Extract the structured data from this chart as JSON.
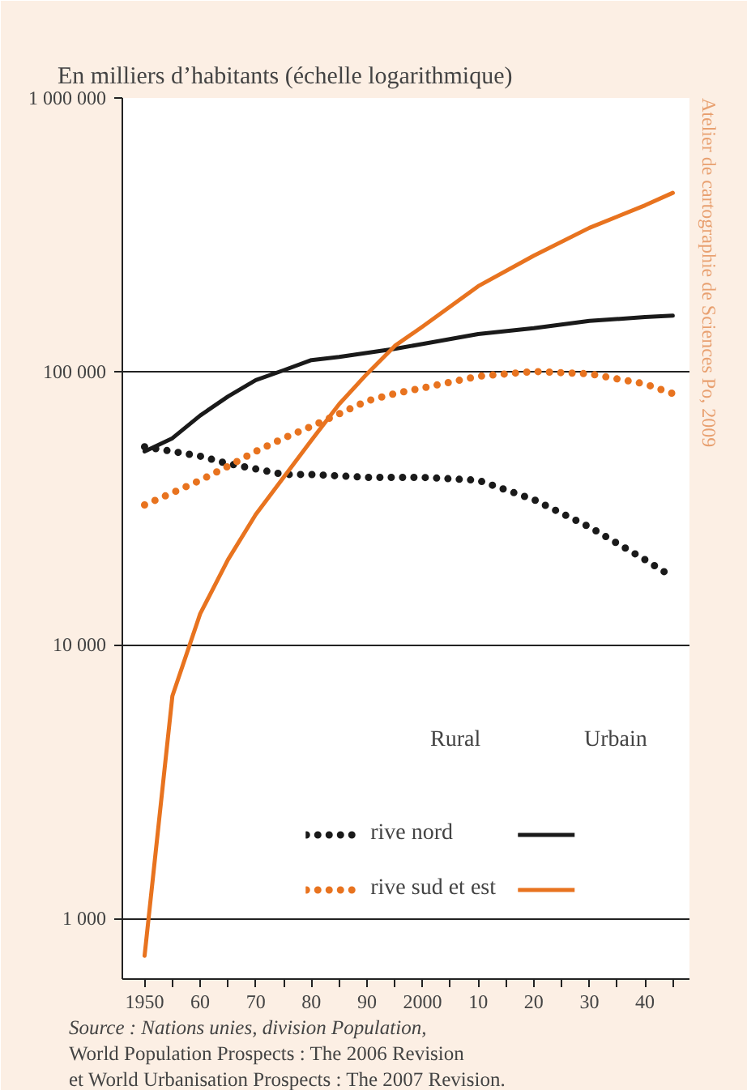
{
  "chart_data": {
    "type": "line",
    "title": "En milliers d’habitants (échelle logarithmique)",
    "x": [
      1950,
      1955,
      1960,
      1965,
      1970,
      1975,
      1980,
      1985,
      1990,
      1995,
      2000,
      2010,
      2020,
      2030,
      2040,
      2045
    ],
    "series": [
      {
        "name": "rive nord",
        "color": "#1a1a1a",
        "line_style": "dotted",
        "values": [
          53000,
          51000,
          49000,
          46000,
          44000,
          42000,
          42000,
          41500,
          41000,
          41000,
          41000,
          40000,
          34000,
          27000,
          20500,
          17700
        ]
      },
      {
        "color": "#1a1a1a",
        "line_style": "solid",
        "values": [
          51000,
          57000,
          69000,
          81000,
          93000,
          101000,
          110000,
          113000,
          117000,
          121000,
          126000,
          137000,
          144000,
          153000,
          158000,
          160000
        ]
      },
      {
        "name": "rive sud et est",
        "color": "#e8731f",
        "line_style": "dotted",
        "values": [
          32500,
          36000,
          40000,
          45000,
          51000,
          57000,
          63000,
          70000,
          78000,
          83000,
          87000,
          96000,
          100000,
          98000,
          90000,
          83000
        ]
      },
      {
        "color": "#e8731f",
        "line_style": "solid",
        "values": [
          730,
          6500,
          13000,
          20500,
          30000,
          41000,
          56000,
          76000,
          98000,
          124000,
          146000,
          205000,
          265000,
          335000,
          405000,
          450000
        ]
      }
    ],
    "log": "y",
    "grid": "y",
    "legend": "bottom right",
    "xlim": [
      1946,
      2048
    ],
    "ylim": [
      600,
      1000000
    ],
    "xticks": [
      {
        "value": 1950,
        "label": "1950"
      },
      {
        "value": 1955,
        "label": null
      },
      {
        "value": 1960,
        "label": "60"
      },
      {
        "value": 1965,
        "label": null
      },
      {
        "value": 1970,
        "label": "70"
      },
      {
        "value": 1975,
        "label": null
      },
      {
        "value": 1980,
        "label": "80"
      },
      {
        "value": 1985,
        "label": null
      },
      {
        "value": 1990,
        "label": "90"
      },
      {
        "value": 1995,
        "label": null
      },
      {
        "value": 2000,
        "label": "2000"
      },
      {
        "value": 2005,
        "label": null
      },
      {
        "value": 2010,
        "label": "10"
      },
      {
        "value": 2015,
        "label": null
      },
      {
        "value": 2020,
        "label": "20"
      },
      {
        "value": 2025,
        "label": null
      },
      {
        "value": 2030,
        "label": "30"
      },
      {
        "value": 2035,
        "label": null
      },
      {
        "value": 2040,
        "label": "40"
      },
      {
        "value": 2045,
        "label": null
      }
    ],
    "yticks": [
      {
        "value": 1000,
        "label": "1 000"
      },
      {
        "value": 10000,
        "label": "10 000"
      },
      {
        "value": 100000,
        "label": "100 000"
      },
      {
        "value": 1000000,
        "label": "1 000 000"
      }
    ],
    "annotations": [
      "Rural",
      "Urbain",
      "Source : Nations unies, division Population,",
      "World Population Prospects : The 2006 Revision",
      "et World Urbanisation Prospects : The 2007 Revision.",
      "Atelier de cartographie de Sciences Po, 2009"
    ]
  }
}
